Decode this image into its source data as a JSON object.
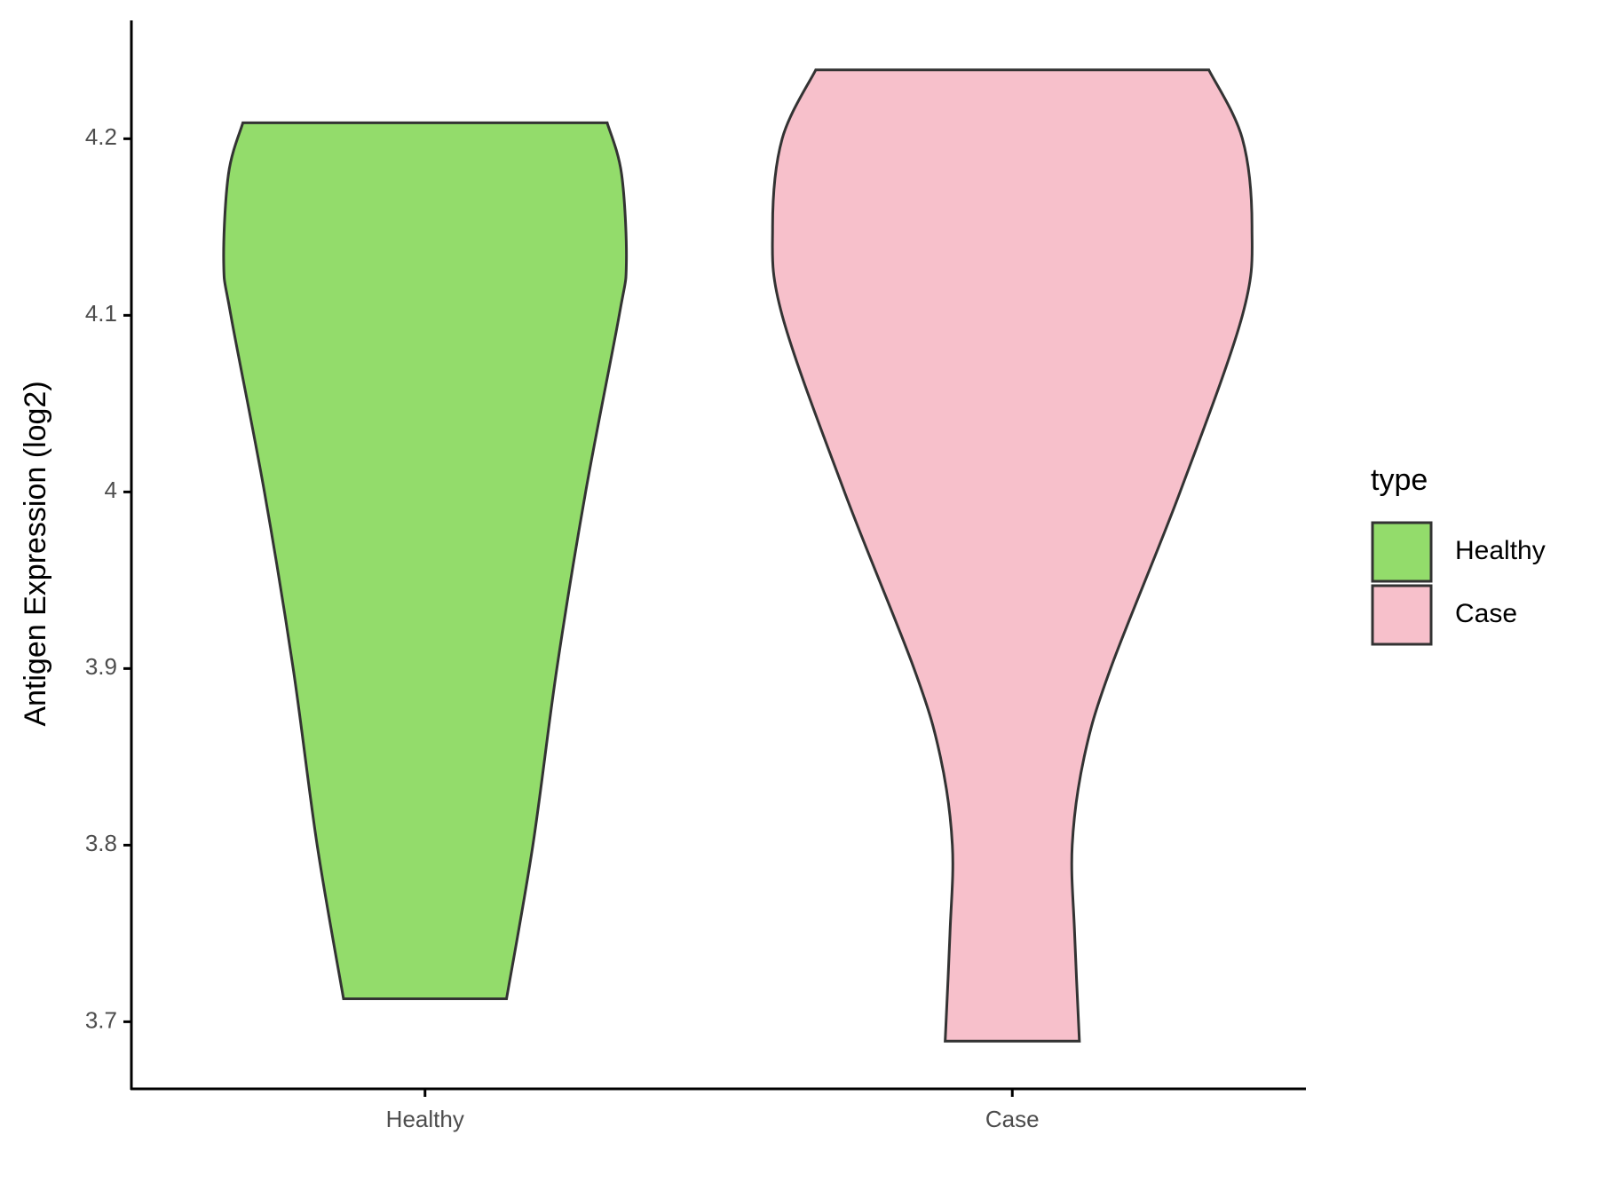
{
  "chart_data": {
    "type": "violin",
    "y_label": "Antigen Expression (log2)",
    "categories": [
      "Healthy",
      "Case"
    ],
    "legend_title": "type",
    "legend_position": "right",
    "ylim": [
      3.662,
      4.267
    ],
    "yticks": [
      3.7,
      3.8,
      3.9,
      4.0,
      4.1,
      4.2
    ],
    "series": [
      {
        "name": "Healthy",
        "color": "#93dc6b",
        "y": [
          3.713,
          3.8,
          3.9,
          4.0,
          4.1,
          4.13,
          4.18,
          4.209
        ],
        "widths": [
          0.34,
          0.45,
          0.55,
          0.67,
          0.81,
          0.84,
          0.82,
          0.76
        ]
      },
      {
        "name": "Case",
        "color": "#f7c0cb",
        "y": [
          3.689,
          3.75,
          3.8,
          3.85,
          3.9,
          4.0,
          4.1,
          4.15,
          4.2,
          4.239
        ],
        "widths": [
          0.28,
          0.26,
          0.25,
          0.3,
          0.41,
          0.7,
          0.96,
          1.0,
          0.96,
          0.82
        ]
      }
    ]
  }
}
